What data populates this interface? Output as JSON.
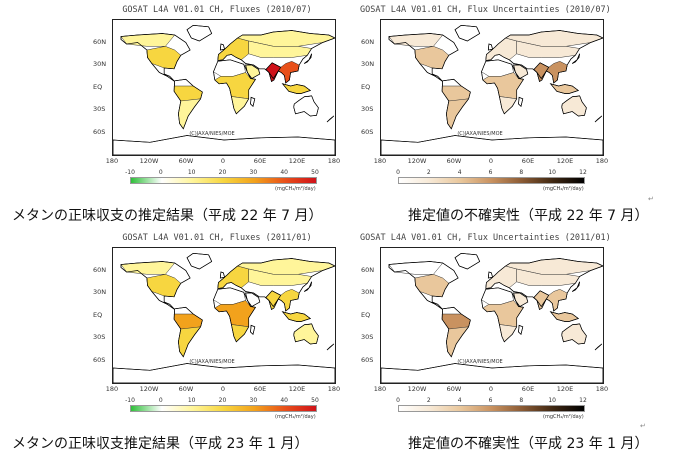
{
  "panels": [
    {
      "title": "GOSAT L4A V01.01 CH, Fluxes (2010/07)",
      "type": "flux",
      "credit": "(C)JAXA/NIES/MOE",
      "ticks": [
        "-10",
        "0",
        "10",
        "20",
        "30",
        "40",
        "50"
      ],
      "unit": "(mgCH₄/m²/day)"
    },
    {
      "title": "GOSAT L4A V01.01 CH, Flux Uncertainties (2010/07)",
      "type": "unc",
      "credit": "(C)JAXA/NIES/MOE",
      "ticks": [
        "0",
        "2",
        "4",
        "6",
        "8",
        "10",
        "12"
      ],
      "unit": "(mgCH₄/m²/day)"
    },
    {
      "title": "GOSAT L4A V01.01 CH, Fluxes (2011/01)",
      "type": "flux",
      "credit": "(C)JAXA/NIES/MOE",
      "ticks": [
        "-10",
        "0",
        "10",
        "20",
        "30",
        "40",
        "50"
      ],
      "unit": "(mgCH₄/m²/day)"
    },
    {
      "title": "GOSAT L4A V01.01 CH, Flux Uncertainties (2011/01)",
      "type": "unc",
      "credit": "(C)JAXA/NIES/MOE",
      "ticks": [
        "0",
        "2",
        "4",
        "6",
        "8",
        "10",
        "12"
      ],
      "unit": "(mgCH₄/m²/day)"
    }
  ],
  "lat_labels": [
    "60N",
    "30N",
    "EQ",
    "30S",
    "60S"
  ],
  "lon_labels": [
    "180",
    "120W",
    "60W",
    "0",
    "60E",
    "120E",
    "180"
  ],
  "captions": {
    "c1": "メタンの正味収支の推定結果（平成 22 年 7 月）",
    "c2": "推定値の不確実性（平成 22 年 7 月）",
    "c3": "メタンの正味収支推定結果（平成 23 年 1 月）",
    "c4": "推定値の不確実性（平成 23 年 1 月）"
  },
  "colors": {
    "flux_scale": [
      "#2fbf3a",
      "#ffffff",
      "#fff59a",
      "#f7d640",
      "#f2a21c",
      "#e8501a",
      "#d0121a"
    ],
    "unc_scale": [
      "#ffffff",
      "#f7e9d6",
      "#e9c79c",
      "#c99260",
      "#8a5a34",
      "#3f2712",
      "#000000"
    ]
  }
}
